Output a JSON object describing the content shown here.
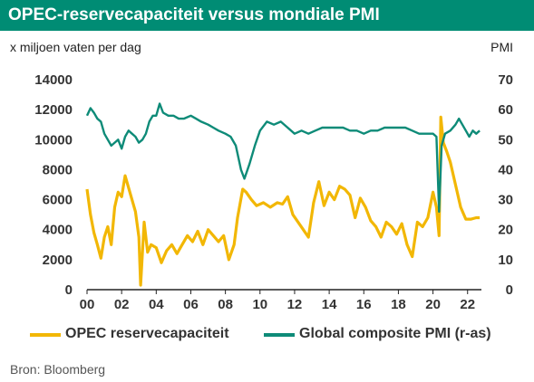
{
  "header": {
    "title": "OPEC-reservecapaciteit versus mondiale PMI",
    "unit_left": "x miljoen vaten per dag",
    "unit_right": "PMI"
  },
  "colors": {
    "brand": "#008C74",
    "opec": "#F2B705",
    "pmi": "#0E8B78"
  },
  "source": "Bron: Bloomberg",
  "chart_data": {
    "type": "line",
    "title": "OPEC-reservecapaciteit versus mondiale PMI",
    "ylabel": "x miljoen vaten per dag",
    "y2label": "PMI",
    "xlim": [
      2000,
      2022.8
    ],
    "ylim": [
      0,
      14000
    ],
    "y2lim": [
      0,
      70
    ],
    "y_ticks": [
      "0",
      "2000",
      "4000",
      "6000",
      "8000",
      "10000",
      "12000",
      "14000"
    ],
    "y2_ticks": [
      "0",
      "10",
      "20",
      "30",
      "40",
      "50",
      "60",
      "70"
    ],
    "x_ticks": [
      {
        "label": "00",
        "value": 2000
      },
      {
        "label": "02",
        "value": 2002
      },
      {
        "label": "04",
        "value": 2004
      },
      {
        "label": "06",
        "value": 2006
      },
      {
        "label": "08",
        "value": 2008
      },
      {
        "label": "10",
        "value": 2010
      },
      {
        "label": "12",
        "value": 2012
      },
      {
        "label": "14",
        "value": 2014
      },
      {
        "label": "16",
        "value": 2016
      },
      {
        "label": "18",
        "value": 2018
      },
      {
        "label": "20",
        "value": 2020
      },
      {
        "label": "22",
        "value": 2022
      }
    ],
    "grid": false,
    "legend_position": "bottom",
    "series": [
      {
        "name": "OPEC reservecapaciteit",
        "axis": "left",
        "x": [
          2000.0,
          2000.2,
          2000.4,
          2000.6,
          2000.8,
          2001.0,
          2001.2,
          2001.4,
          2001.6,
          2001.8,
          2002.0,
          2002.2,
          2002.4,
          2002.6,
          2002.8,
          2003.0,
          2003.1,
          2003.3,
          2003.5,
          2003.7,
          2004.0,
          2004.3,
          2004.6,
          2004.9,
          2005.2,
          2005.5,
          2005.8,
          2006.1,
          2006.4,
          2006.7,
          2007.0,
          2007.3,
          2007.6,
          2007.9,
          2008.2,
          2008.5,
          2008.7,
          2009.0,
          2009.2,
          2009.5,
          2009.8,
          2010.2,
          2010.6,
          2011.0,
          2011.3,
          2011.6,
          2011.9,
          2012.2,
          2012.5,
          2012.8,
          2013.1,
          2013.4,
          2013.7,
          2014.0,
          2014.3,
          2014.6,
          2014.9,
          2015.2,
          2015.5,
          2015.8,
          2016.1,
          2016.4,
          2016.7,
          2017.0,
          2017.3,
          2017.6,
          2017.9,
          2018.2,
          2018.5,
          2018.8,
          2019.1,
          2019.4,
          2019.7,
          2020.0,
          2020.2,
          2020.35,
          2020.45,
          2020.6,
          2020.8,
          2021.0,
          2021.3,
          2021.6,
          2021.9,
          2022.2,
          2022.5,
          2022.7
        ],
        "values": [
          6700,
          5000,
          3800,
          3000,
          2100,
          3500,
          4200,
          3000,
          5500,
          6500,
          6200,
          7600,
          6800,
          6000,
          5200,
          3500,
          300,
          4500,
          2500,
          3000,
          2800,
          1800,
          2600,
          3000,
          2400,
          3000,
          3600,
          3200,
          3900,
          3000,
          4000,
          3600,
          3200,
          3600,
          2000,
          3000,
          4800,
          6700,
          6500,
          6000,
          5600,
          5800,
          5500,
          5800,
          5700,
          6200,
          5000,
          4500,
          4000,
          3500,
          5800,
          7200,
          5600,
          6500,
          6000,
          6900,
          6700,
          6300,
          4800,
          6100,
          5500,
          4600,
          4200,
          3500,
          4500,
          4200,
          3700,
          4400,
          3000,
          2200,
          4500,
          4200,
          4800,
          6500,
          5500,
          3600,
          11500,
          9800,
          9200,
          8500,
          7000,
          5500,
          4700,
          4700,
          4800,
          4800
        ]
      },
      {
        "name": "Global composite PMI (r-as)",
        "axis": "right",
        "x": [
          2000.0,
          2000.2,
          2000.4,
          2000.6,
          2000.8,
          2001.0,
          2001.2,
          2001.4,
          2001.6,
          2001.8,
          2002.0,
          2002.2,
          2002.4,
          2002.6,
          2002.8,
          2003.0,
          2003.2,
          2003.4,
          2003.6,
          2003.8,
          2004.0,
          2004.2,
          2004.4,
          2004.7,
          2005.0,
          2005.3,
          2005.6,
          2006.0,
          2006.3,
          2006.6,
          2007.0,
          2007.3,
          2007.6,
          2008.0,
          2008.3,
          2008.6,
          2008.9,
          2009.1,
          2009.4,
          2009.7,
          2010.0,
          2010.4,
          2010.8,
          2011.2,
          2011.6,
          2012.0,
          2012.4,
          2012.8,
          2013.2,
          2013.6,
          2014.0,
          2014.4,
          2014.8,
          2015.2,
          2015.6,
          2016.0,
          2016.4,
          2016.8,
          2017.2,
          2017.6,
          2018.0,
          2018.4,
          2018.8,
          2019.2,
          2019.6,
          2020.0,
          2020.2,
          2020.35,
          2020.5,
          2020.7,
          2021.0,
          2021.3,
          2021.5,
          2021.7,
          2021.9,
          2022.1,
          2022.3,
          2022.5,
          2022.7
        ],
        "values": [
          58,
          60.5,
          59,
          57,
          56,
          52,
          50,
          48,
          49,
          50,
          47,
          51,
          53,
          52,
          51,
          49,
          50,
          52,
          56,
          58,
          58,
          62,
          59,
          58,
          58,
          57,
          57,
          58,
          57,
          56,
          55,
          54,
          53,
          52,
          51,
          48,
          40,
          37,
          42,
          48,
          53,
          56,
          55,
          56,
          54,
          52,
          53,
          52,
          53,
          54,
          54,
          54,
          54,
          53,
          53,
          52,
          53,
          53,
          54,
          54,
          54,
          54,
          53,
          52,
          52,
          52,
          51,
          26,
          48,
          52,
          53,
          55,
          57,
          55,
          53,
          51,
          53,
          52,
          53
        ]
      }
    ]
  }
}
